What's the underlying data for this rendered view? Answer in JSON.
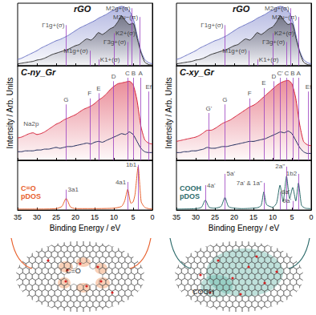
{
  "chart_data": [
    {
      "type": "line",
      "title": "rGO",
      "x": [
        35,
        34,
        33,
        32,
        31,
        30,
        29,
        28,
        27,
        26,
        25,
        24,
        23,
        22,
        21,
        20,
        19,
        18,
        17,
        16,
        15,
        14,
        13,
        12,
        11,
        10,
        9,
        8,
        7,
        6,
        5,
        4,
        3,
        2,
        1,
        0
      ],
      "xlim": [
        35,
        0
      ],
      "xticks": [
        35,
        30,
        25,
        20,
        15,
        10,
        5,
        0
      ],
      "ylim": [
        0,
        10
      ],
      "tick_labels": false,
      "series": [
        {
          "type": "area",
          "color": "#6f77c6",
          "values": [
            1.0,
            1.2,
            1.5,
            1.8,
            2.1,
            2.4,
            2.8,
            3.1,
            3.4,
            3.7,
            4.0,
            4.2,
            4.5,
            4.8,
            5.2,
            5.6,
            6.0,
            6.3,
            6.6,
            6.9,
            7.2,
            7.6,
            7.9,
            8.2,
            8.6,
            8.9,
            9.3,
            9.5,
            9.3,
            8.8,
            7.6,
            5.0,
            2.4,
            1.0,
            0.5,
            0.3
          ]
        },
        {
          "type": "area",
          "color": "#333333",
          "values": [
            0.3,
            0.4,
            0.5,
            0.6,
            0.7,
            0.9,
            1.0,
            1.2,
            1.5,
            1.8,
            2.0,
            2.2,
            2.4,
            2.6,
            2.9,
            3.2,
            3.4,
            3.9,
            4.3,
            4.1,
            4.6,
            5.3,
            5.0,
            5.4,
            5.9,
            6.2,
            7.0,
            8.0,
            7.2,
            6.6,
            6.8,
            4.5,
            2.2,
            0.6,
            0.2,
            0.1
          ]
        }
      ],
      "annotations": [
        {
          "x": 22.4,
          "y": 6.5,
          "label": "Γ1g+(σ)"
        },
        {
          "x": 5.3,
          "y": 9.2,
          "label": "M2g+(σ)"
        },
        {
          "x": 3.3,
          "y": 7.8,
          "label": "M2u−(π)"
        },
        {
          "x": 10.0,
          "y": 5.2,
          "label": "K2+(σ)"
        },
        {
          "x": 16.3,
          "y": 2.4,
          "label": "M1g+(σ)"
        },
        {
          "x": 14.0,
          "y": 1.0,
          "label": "K1+(σ)"
        },
        {
          "x": 6.4,
          "y": 3.8,
          "label": "Γ3g+(σ)"
        }
      ]
    },
    {
      "type": "line",
      "title": "C-ny_Gr",
      "y_label": "Intensity / Arb. Units",
      "x": [
        35,
        34,
        33,
        32,
        31,
        30,
        29,
        28,
        27,
        26,
        25,
        24,
        23,
        22,
        21,
        20,
        19,
        18,
        17,
        16,
        15,
        14,
        13,
        12,
        11,
        10,
        9,
        8,
        7,
        6,
        5,
        4,
        3,
        2,
        1,
        0
      ],
      "xlim": [
        35,
        0
      ],
      "xticks": [
        35,
        30,
        25,
        20,
        15,
        10,
        5,
        0
      ],
      "ylim": [
        0,
        11
      ],
      "tick_labels": false,
      "series": [
        {
          "type": "area",
          "color": "#d7263d",
          "values": [
            2.6,
            2.7,
            2.9,
            3.1,
            3.2,
            3.0,
            3.1,
            3.3,
            3.6,
            3.9,
            4.2,
            4.4,
            4.7,
            4.9,
            5.1,
            5.3,
            5.6,
            5.9,
            6.1,
            6.3,
            6.6,
            7.0,
            7.3,
            7.7,
            8.2,
            8.6,
            8.9,
            9.0,
            9.1,
            9.2,
            8.8,
            7.0,
            4.0,
            2.4,
            2.0,
            1.9
          ]
        },
        {
          "type": "line",
          "color": "#1f2a5c",
          "values": [
            1.0,
            1.0,
            1.1,
            1.1,
            1.1,
            1.2,
            1.2,
            1.3,
            1.3,
            1.4,
            1.5,
            1.4,
            1.5,
            1.6,
            1.6,
            1.7,
            1.8,
            1.9,
            2.0,
            1.9,
            2.1,
            2.2,
            2.1,
            2.3,
            2.5,
            2.7,
            2.9,
            3.1,
            3.0,
            3.3,
            3.0,
            2.2,
            1.4,
            1.0,
            0.9,
            0.9
          ]
        }
      ],
      "annotations": [
        {
          "x": 22.4,
          "y": 6.5,
          "label": "G"
        },
        {
          "x": 16.3,
          "y": 7.2,
          "label": "F"
        },
        {
          "x": 14.0,
          "y": 7.8,
          "label": "E"
        },
        {
          "x": 10.1,
          "y": 9.2,
          "label": "D"
        },
        {
          "x": 6.5,
          "y": 9.6,
          "label": "C"
        },
        {
          "x": 4.9,
          "y": 9.6,
          "label": "B"
        },
        {
          "x": 3.1,
          "y": 9.6,
          "label": "A"
        },
        {
          "x": 1.0,
          "y": 8.0,
          "label": "Ef"
        }
      ],
      "texts": [
        {
          "x": 31.5,
          "y": 4.2,
          "label": "Na2p"
        }
      ]
    },
    {
      "type": "line",
      "title": "C=O pDOS",
      "x_label": "Binding Energy / eV",
      "x": [
        35,
        30,
        25,
        23.5,
        22.4,
        21.3,
        20,
        15,
        10,
        8,
        7.2,
        6.4,
        5.6,
        5,
        4.5,
        3.7,
        2.9,
        2,
        1,
        0
      ],
      "xlim": [
        35,
        0
      ],
      "xticks": [
        35,
        30,
        25,
        20,
        15,
        10,
        5,
        0
      ],
      "ylim": [
        0,
        11
      ],
      "tick_labels": "x",
      "series": [
        {
          "type": "line",
          "color": "#e8602c",
          "values": [
            0.2,
            0.2,
            0.3,
            0.8,
            2.6,
            0.7,
            0.3,
            0.3,
            0.4,
            0.8,
            2.0,
            4.6,
            1.5,
            1.8,
            3.5,
            9.6,
            1.8,
            0.6,
            0.3,
            0.2
          ]
        }
      ],
      "annotations": [
        {
          "x": 22.4,
          "y": 4.5,
          "label": "3a1"
        },
        {
          "x": 6.4,
          "y": 6.2,
          "label": "4a1"
        },
        {
          "x": 3.7,
          "y": 10.0,
          "label": "1b1"
        }
      ]
    },
    {
      "type": "line",
      "title": "rGO",
      "x": [
        35,
        34,
        33,
        32,
        31,
        30,
        29,
        28,
        27,
        26,
        25,
        24,
        23,
        22,
        21,
        20,
        19,
        18,
        17,
        16,
        15,
        14,
        13,
        12,
        11,
        10,
        9,
        8,
        7,
        6,
        5,
        4,
        3,
        2,
        1,
        0
      ],
      "xlim": [
        35,
        0
      ],
      "xticks": [
        35,
        30,
        25,
        20,
        15,
        10,
        5,
        0
      ],
      "ylim": [
        0,
        10
      ],
      "tick_labels": false,
      "series": [
        {
          "type": "area",
          "color": "#6f77c6",
          "values": [
            1.0,
            1.2,
            1.5,
            1.8,
            2.1,
            2.4,
            2.8,
            3.1,
            3.4,
            3.7,
            4.0,
            4.2,
            4.5,
            4.8,
            5.2,
            5.6,
            6.0,
            6.3,
            6.6,
            6.9,
            7.2,
            7.6,
            7.9,
            8.2,
            8.6,
            8.9,
            9.3,
            9.5,
            9.3,
            8.8,
            7.6,
            5.0,
            2.4,
            1.0,
            0.5,
            0.3
          ]
        },
        {
          "type": "area",
          "color": "#333333",
          "values": [
            0.3,
            0.4,
            0.5,
            0.6,
            0.7,
            0.9,
            1.0,
            1.2,
            1.5,
            1.8,
            2.0,
            2.2,
            2.4,
            2.6,
            2.9,
            3.2,
            3.4,
            3.9,
            4.3,
            4.1,
            4.6,
            5.3,
            5.0,
            5.4,
            5.9,
            6.2,
            7.0,
            8.0,
            7.2,
            6.6,
            6.8,
            4.5,
            2.2,
            0.6,
            0.2,
            0.1
          ]
        }
      ],
      "annotations": [
        {
          "x": 22.4,
          "y": 6.5,
          "label": "Γ1g+(σ)"
        },
        {
          "x": 5.3,
          "y": 9.2,
          "label": "M2g+(σ)"
        },
        {
          "x": 3.3,
          "y": 7.8,
          "label": "M2u−(π)"
        },
        {
          "x": 10.0,
          "y": 5.2,
          "label": "K2+(σ)"
        },
        {
          "x": 16.3,
          "y": 2.4,
          "label": "M1g+(σ)"
        },
        {
          "x": 14.0,
          "y": 1.0,
          "label": "K1+(σ)"
        },
        {
          "x": 6.4,
          "y": 3.8,
          "label": "Γ3g+(σ)"
        }
      ]
    },
    {
      "type": "line",
      "title": "C-xy_Gr",
      "y_label": "Intensity / Arb. Units",
      "x": [
        35,
        34,
        33,
        32,
        31,
        30,
        29,
        28,
        27,
        26,
        25,
        24,
        23,
        22,
        21,
        20,
        19,
        18,
        17,
        16,
        15,
        14,
        13,
        12,
        11,
        10,
        9,
        8,
        7,
        6,
        5,
        4,
        3,
        2,
        1,
        0
      ],
      "xlim": [
        35,
        0
      ],
      "xticks": [
        35,
        30,
        25,
        20,
        15,
        10,
        5,
        0
      ],
      "ylim": [
        0,
        11
      ],
      "tick_labels": false,
      "series": [
        {
          "type": "area",
          "color": "#d7263d",
          "values": [
            2.2,
            2.3,
            2.4,
            2.5,
            2.6,
            2.7,
            2.9,
            3.2,
            3.5,
            3.5,
            3.7,
            4.0,
            4.3,
            4.5,
            4.7,
            5.0,
            5.3,
            5.6,
            5.9,
            6.2,
            6.4,
            6.7,
            7.1,
            7.5,
            7.9,
            8.3,
            8.7,
            9.0,
            9.2,
            9.3,
            8.9,
            7.2,
            4.2,
            2.2,
            1.8,
            1.7
          ]
        },
        {
          "type": "line",
          "color": "#1f2a5c",
          "values": [
            0.9,
            0.9,
            1.0,
            1.0,
            1.1,
            1.1,
            1.2,
            1.3,
            1.5,
            1.4,
            1.4,
            1.5,
            1.6,
            1.6,
            1.7,
            1.8,
            1.9,
            2.0,
            2.1,
            2.2,
            2.2,
            2.3,
            2.4,
            2.5,
            2.7,
            2.9,
            3.1,
            3.3,
            3.2,
            3.4,
            3.1,
            2.3,
            1.5,
            1.0,
            0.8,
            0.8
          ]
        }
      ],
      "annotations": [
        {
          "x": 26.6,
          "y": 5.5,
          "label": "G'"
        },
        {
          "x": 22.4,
          "y": 6.5,
          "label": "G"
        },
        {
          "x": 16.0,
          "y": 7.2,
          "label": "F"
        },
        {
          "x": 12.3,
          "y": 8.4,
          "label": "E"
        },
        {
          "x": 9.7,
          "y": 9.2,
          "label": "D"
        },
        {
          "x": 8.1,
          "y": 9.6,
          "label": "C'"
        },
        {
          "x": 6.4,
          "y": 9.6,
          "label": "C"
        },
        {
          "x": 4.8,
          "y": 9.6,
          "label": "B"
        },
        {
          "x": 3.3,
          "y": 9.6,
          "label": "A"
        },
        {
          "x": 0.7,
          "y": 8.0,
          "label": "Ef"
        }
      ]
    },
    {
      "type": "line",
      "title": "COOH pDOS",
      "x_label": "Binding Energy / eV",
      "x": [
        35,
        30,
        28.5,
        27.5,
        26.5,
        25,
        23.4,
        22.4,
        21.4,
        18,
        14,
        13,
        12.3,
        11.6,
        10,
        9,
        8.1,
        7.3,
        6.4,
        5.6,
        4.8,
        4.0,
        3.3,
        2.5,
        1.5,
        0
      ],
      "xlim": [
        35,
        0
      ],
      "xticks": [
        35,
        30,
        25,
        20,
        15,
        10,
        5,
        0
      ],
      "ylim": [
        0,
        11
      ],
      "tick_labels": "x",
      "series": [
        {
          "type": "line",
          "color": "#2d6b6b",
          "values": [
            0.2,
            0.3,
            0.6,
            2.2,
            0.6,
            0.4,
            0.8,
            2.8,
            0.7,
            0.3,
            0.5,
            1.0,
            4.0,
            1.2,
            0.6,
            1.5,
            5.5,
            1.8,
            7.5,
            2.5,
            5.0,
            2.0,
            6.0,
            1.0,
            0.4,
            0.3
          ]
        }
      ],
      "annotations": [
        {
          "x": 27.5,
          "y": 5.5,
          "label": "4a'"
        },
        {
          "x": 22.4,
          "y": 8.0,
          "label": "5a'"
        },
        {
          "x": 12.3,
          "y": 6.0,
          "label": "7a' & 1a''"
        },
        {
          "x": 8.1,
          "y": 4.0,
          "label": "8a'"
        },
        {
          "x": 6.4,
          "y": 9.6,
          "label": "2a''"
        },
        {
          "x": 4.8,
          "y": 2.0,
          "label": "9a'"
        },
        {
          "x": 3.3,
          "y": 8.0,
          "label": "1b2"
        }
      ]
    }
  ],
  "drawings": [
    {
      "label": "C=O"
    },
    {
      "label": "COOH"
    }
  ]
}
